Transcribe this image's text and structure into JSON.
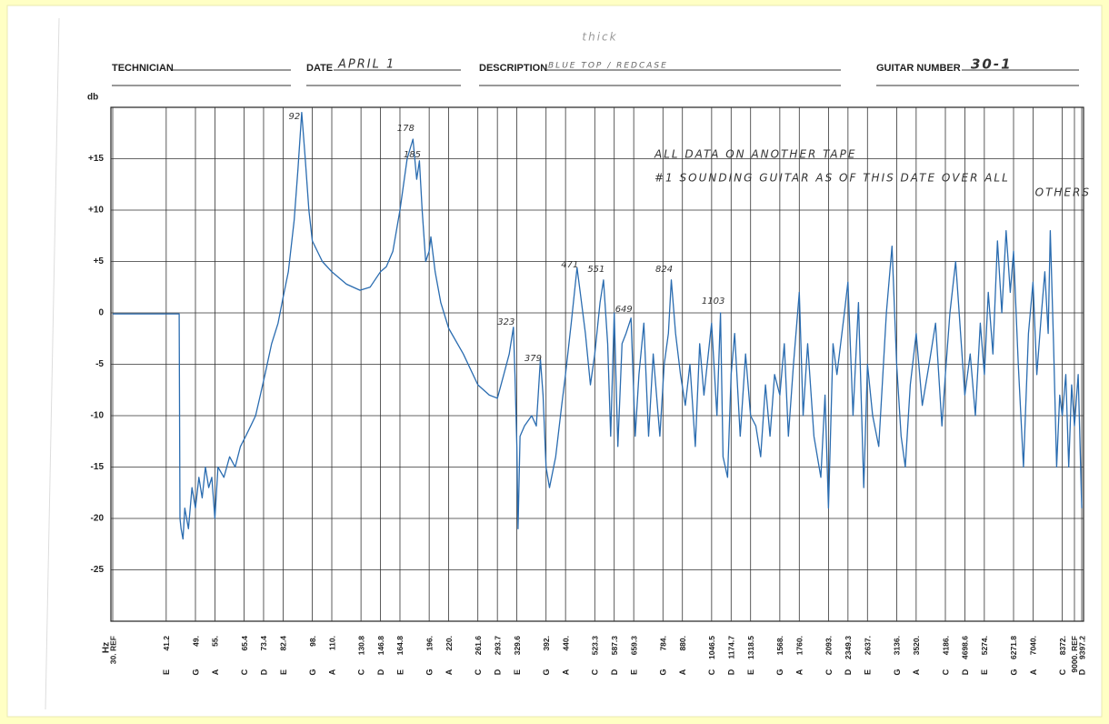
{
  "header": {
    "note": "thick",
    "technician_label": "TECHNICIAN",
    "date_label": "DATE",
    "date": "APRIL 1",
    "description_label": "DESCRIPTION",
    "description": "BLUE TOP / REDCASE",
    "guitar_number_label": "GUITAR NUMBER",
    "guitar_number": "30-1"
  },
  "chart_data": {
    "type": "line",
    "ylabel": "db",
    "xlabel": "Hz",
    "color": "#2a6cb0",
    "log_x": true,
    "grid": true,
    "annotations": [
      "ALL DATA ON ANOTHER TAPE",
      "#1 SOUNDING GUITAR AS OF THIS DATE OVER ALL",
      "OTHERS"
    ],
    "peak_labels": [
      92,
      178,
      185,
      323,
      379,
      471,
      551,
      649,
      824,
      1103
    ],
    "xlim": [
      30,
      9397.2
    ],
    "ylim": [
      -30,
      20
    ],
    "yticks": [
      {
        "value": 15,
        "label": "+15"
      },
      {
        "value": 10,
        "label": "+10"
      },
      {
        "value": 5,
        "label": "+5"
      },
      0,
      -5,
      -10,
      -15,
      -20,
      -25
    ],
    "xticks": [
      {
        "value": 30,
        "label": "30. REF"
      },
      41.2,
      {
        "value": 49,
        "label": "49."
      },
      {
        "value": 55,
        "label": "55."
      },
      65.4,
      73.4,
      82.4,
      {
        "value": 98,
        "label": "98."
      },
      {
        "value": 110,
        "label": "110."
      },
      130.8,
      146.8,
      164.8,
      {
        "value": 196,
        "label": "196."
      },
      {
        "value": 220,
        "label": "220."
      },
      261.6,
      293.7,
      329.6,
      {
        "value": 392,
        "label": "392."
      },
      {
        "value": 440,
        "label": "440."
      },
      523.3,
      587.3,
      659.3,
      {
        "value": 784,
        "label": "784."
      },
      {
        "value": 880,
        "label": "880."
      },
      1046.5,
      1174.7,
      1318.5,
      {
        "value": 1568,
        "label": "1568."
      },
      {
        "value": 1760,
        "label": "1760."
      },
      {
        "value": 2093,
        "label": "2093."
      },
      2349.3,
      {
        "value": 2637,
        "label": "2637."
      },
      {
        "value": 3136,
        "label": "3136."
      },
      {
        "value": 3520,
        "label": "3520."
      },
      {
        "value": 4186,
        "label": "4186."
      },
      4698.6,
      {
        "value": 5274,
        "label": "5274."
      },
      6271.8,
      {
        "value": 7040,
        "label": "7040."
      },
      {
        "value": 8372,
        "label": "8372."
      },
      {
        "value": 9000,
        "label": "9000. REF"
      },
      9397.2
    ],
    "x_notes": [
      null,
      "E",
      "G",
      "A",
      "C",
      "D",
      "E",
      "G",
      "A",
      "C",
      "D",
      "E",
      "G",
      "A",
      "C",
      "D",
      "E",
      "G",
      "A",
      "C",
      "D",
      "E",
      "G",
      "A",
      "C",
      "D",
      "E",
      "G",
      "A",
      "C",
      "D",
      "E",
      "G",
      "A",
      "C",
      "D",
      "E",
      "G",
      "A",
      "C",
      null,
      "D"
    ],
    "x": [
      30,
      44.5,
      44.7,
      45,
      45.5,
      46,
      47,
      48,
      49,
      50,
      51,
      52,
      53,
      54,
      55,
      56,
      58,
      60,
      62,
      64,
      66,
      68,
      70,
      72,
      74,
      77,
      80,
      82.4,
      85,
      88,
      90,
      92,
      94,
      96,
      98,
      104,
      110,
      120,
      130,
      138,
      146.8,
      152,
      158,
      164.8,
      172,
      178,
      182,
      185,
      188,
      192,
      196,
      198,
      203,
      210,
      220,
      240,
      261.6,
      280,
      293.7,
      305,
      315,
      323,
      326,
      329.6,
      332,
      336,
      345,
      360,
      370,
      379,
      385,
      392,
      400,
      415,
      430,
      440,
      455,
      471,
      480,
      495,
      510,
      523.3,
      540,
      551,
      565,
      575,
      587.3,
      600,
      615,
      630,
      649,
      665,
      680,
      700,
      720,
      740,
      770,
      790,
      810,
      824,
      845,
      870,
      895,
      920,
      950,
      975,
      1000,
      1046,
      1080,
      1103,
      1120,
      1150,
      1174.7,
      1200,
      1240,
      1280,
      1318.5,
      1360,
      1400,
      1440,
      1480,
      1520,
      1568,
      1610,
      1650,
      1700,
      1760,
      1800,
      1850,
      1920,
      2000,
      2050,
      2093,
      2150,
      2200,
      2300,
      2349,
      2420,
      2500,
      2580,
      2637,
      2720,
      2820,
      2950,
      3050,
      3136,
      3220,
      3300,
      3400,
      3520,
      3650,
      3800,
      3950,
      4100,
      4186,
      4300,
      4450,
      4600,
      4698.6,
      4850,
      5000,
      5150,
      5274,
      5400,
      5550,
      5700,
      5850,
      6000,
      6150,
      6271.8,
      6450,
      6650,
      6850,
      7040,
      7200,
      7400,
      7550,
      7700,
      7800,
      7950,
      8100,
      8250,
      8372,
      8550,
      8700,
      8850,
      9000,
      9200,
      9397.2
    ],
    "values": [
      -0.1,
      -0.1,
      -20,
      -21,
      -22,
      -19,
      -21,
      -17,
      -19,
      -16,
      -18,
      -15,
      -17,
      -16,
      -20,
      -15,
      -16,
      -14,
      -15,
      -13,
      -12,
      -11,
      -10,
      -8,
      -6,
      -3,
      -1,
      1.5,
      4,
      9,
      14,
      19.5,
      15,
      10,
      7,
      5,
      4,
      2.8,
      2.2,
      2.5,
      4,
      4.5,
      6,
      10,
      15,
      16.9,
      13,
      14.8,
      10,
      5,
      6,
      7.4,
      4,
      1,
      -1.5,
      -4,
      -7,
      -8,
      -8.3,
      -6,
      -4,
      -1.4,
      -6,
      -13,
      -21,
      -12,
      -11,
      -10,
      -11,
      -4.5,
      -8,
      -15,
      -17,
      -14,
      -9,
      -6,
      -1,
      4.4,
      2,
      -2,
      -7,
      -4,
      1,
      3.2,
      -3,
      -12,
      0,
      -13,
      -3,
      -2,
      -0.5,
      -12,
      -6,
      -1,
      -12,
      -4,
      -12,
      -5,
      -2,
      3.2,
      -2,
      -6,
      -9,
      -5,
      -13,
      -3,
      -8,
      -1,
      -10,
      0,
      -14,
      -16,
      -6,
      -2,
      -12,
      -4,
      -10,
      -11,
      -14,
      -7,
      -12,
      -6,
      -8,
      -3,
      -12,
      -5,
      2,
      -10,
      -3,
      -12,
      -16,
      -8,
      -19,
      -3,
      -6,
      0,
      3,
      -10,
      1,
      -17,
      -5,
      -10,
      -13,
      0,
      6.5,
      -5,
      -12,
      -15,
      -7,
      -2,
      -9,
      -5,
      -1,
      -11,
      -6,
      0,
      5,
      -3,
      -8,
      -4,
      -10,
      -1,
      -6,
      2,
      -4,
      7,
      0,
      8,
      2,
      6,
      -5,
      -15,
      -2,
      3,
      -6,
      0,
      4,
      -2,
      8,
      -3,
      -15,
      -8,
      -10,
      -6,
      -15,
      -7,
      -11,
      -6,
      -19
    ]
  }
}
